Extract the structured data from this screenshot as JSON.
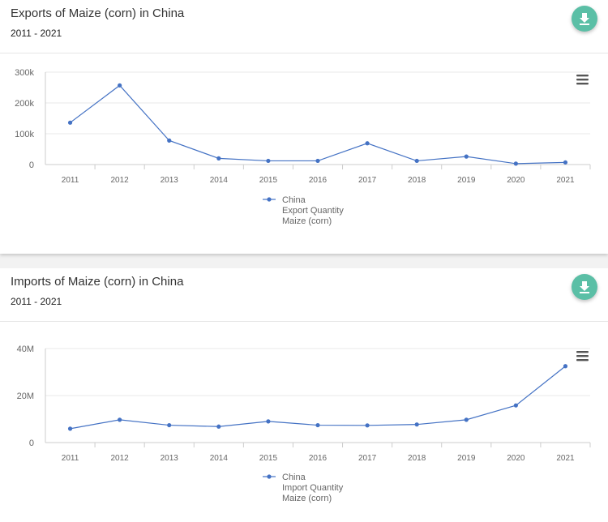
{
  "colors": {
    "line": "#4472c4",
    "button": "#5bbfa6"
  },
  "charts": [
    {
      "title": "Exports of Maize (corn) in China",
      "subtitle": "2011 - 2021",
      "download_icon": "download-icon",
      "menu_icon": "hamburger-menu-icon",
      "legend": [
        "China",
        "Export Quantity",
        "Maize (corn)"
      ]
    },
    {
      "title": "Imports of Maize (corn) in China",
      "subtitle": "2011 - 2021",
      "download_icon": "download-icon",
      "menu_icon": "hamburger-menu-icon",
      "legend": [
        "China",
        "Import Quantity",
        "Maize (corn)"
      ]
    }
  ],
  "chart_data": [
    {
      "type": "line",
      "title": "Exports of Maize (corn) in China",
      "categories": [
        "2011",
        "2012",
        "2013",
        "2014",
        "2015",
        "2016",
        "2017",
        "2018",
        "2019",
        "2020",
        "2021"
      ],
      "series": [
        {
          "name": "China",
          "values": [
            136000,
            257000,
            78000,
            20000,
            12000,
            12000,
            69000,
            12000,
            26000,
            3000,
            7000
          ]
        }
      ],
      "ylim": [
        0,
        300000
      ],
      "yticks": [
        0,
        100000,
        200000,
        300000
      ],
      "ytick_labels": [
        "0",
        "100k",
        "200k",
        "300k"
      ],
      "legend": "bottom-center",
      "grid": true
    },
    {
      "type": "line",
      "title": "Imports of Maize (corn) in China",
      "categories": [
        "2011",
        "2012",
        "2013",
        "2014",
        "2015",
        "2016",
        "2017",
        "2018",
        "2019",
        "2020",
        "2021"
      ],
      "series": [
        {
          "name": "China",
          "values": [
            5900000,
            9700000,
            7400000,
            6800000,
            9000000,
            7400000,
            7300000,
            7700000,
            9700000,
            15800000,
            32500000
          ]
        }
      ],
      "ylim": [
        0,
        40000000
      ],
      "yticks": [
        0,
        20000000,
        40000000
      ],
      "ytick_labels": [
        "0",
        "20M",
        "40M"
      ],
      "legend": "bottom-center",
      "grid": true
    }
  ]
}
